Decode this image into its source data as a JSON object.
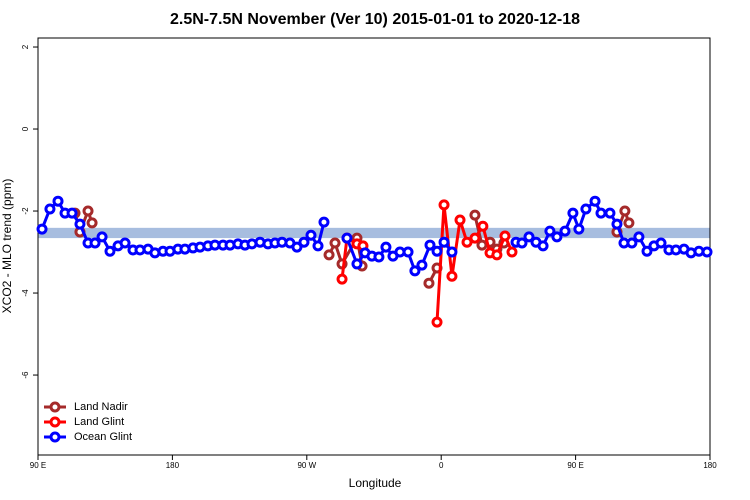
{
  "chart_data": {
    "type": "line",
    "title": "2.5N-7.5N November (Ver 10)   2015-01-01 to 2020-12-18",
    "xlabel": "Longitude",
    "ylabel": "XCO2 - MLO trend (ppm)",
    "xlim": [
      90,
      540
    ],
    "ylim": [
      -7.95,
      2.22
    ],
    "xticks": [
      {
        "value": 90,
        "label": "90 E"
      },
      {
        "value": 180,
        "label": "180"
      },
      {
        "value": 270,
        "label": "90 W"
      },
      {
        "value": 360,
        "label": "0"
      },
      {
        "value": 450,
        "label": "90 E"
      },
      {
        "value": 540,
        "label": "180"
      }
    ],
    "yticks": [
      2,
      0,
      -2,
      -4,
      -6
    ],
    "reference_band": {
      "ylim": [
        -2.66,
        -2.41
      ],
      "color": "#a7bddf"
    },
    "legend": "bottom-left",
    "series": [
      {
        "name": "Land Nadir",
        "color": "#a52a2a",
        "x": [
          114.8,
          118.1,
          123.5,
          126.2,
          null,
          284.9,
          288.9,
          293.6,
          303.6,
          307.0,
          null,
          351.8,
          357.2,
          null,
          382.6,
          387.3,
          392.7,
          397.3,
          402.0,
          null,
          477.7,
          483.0,
          485.7
        ],
        "values": [
          -2.05,
          -2.51,
          -2.0,
          -2.29,
          null,
          -3.07,
          -2.78,
          -3.29,
          -2.66,
          -3.34,
          null,
          -3.76,
          -3.39,
          null,
          -2.1,
          -2.83,
          -2.76,
          -2.93,
          -2.78,
          null,
          -2.51,
          -2.0,
          -2.29
        ]
      },
      {
        "name": "Land Glint",
        "color": "#ff0000",
        "x": [
          293.6,
          296.9,
          303.6,
          307.6,
          null,
          357.2,
          361.9,
          367.2,
          372.6,
          377.3,
          382.6,
          387.9,
          392.7,
          397.3,
          402.7,
          407.4
        ],
        "values": [
          -3.66,
          -2.66,
          -2.8,
          -2.85,
          null,
          -4.71,
          -1.85,
          -3.59,
          -2.22,
          -2.76,
          -2.66,
          -2.37,
          -3.02,
          -3.07,
          -2.61,
          -3.0
        ]
      },
      {
        "name": "Ocean Glint",
        "color": "#0000ff",
        "x": [
          92.7,
          98.0,
          103.4,
          108.1,
          112.8,
          118.1,
          123.5,
          128.2,
          132.9,
          138.2,
          143.6,
          148.3,
          153.6,
          158.3,
          163.7,
          168.3,
          173.7,
          178.4,
          183.7,
          188.4,
          193.8,
          198.5,
          203.8,
          208.5,
          213.9,
          218.6,
          223.9,
          228.6,
          233.3,
          238.7,
          244.0,
          248.7,
          253.4,
          258.7,
          263.4,
          268.1,
          272.8,
          277.5,
          281.5,
          null,
          296.9,
          303.6,
          309.0,
          313.6,
          318.3,
          323.0,
          327.7,
          332.4,
          337.8,
          342.4,
          347.1,
          352.5,
          357.2,
          361.9,
          367.2,
          null,
          410.1,
          414.1,
          418.8,
          423.5,
          428.2,
          432.8,
          437.5,
          442.9,
          448.2,
          452.2,
          456.9,
          463.0,
          467.0,
          473.0,
          477.7,
          482.4,
          487.7,
          492.4,
          497.8,
          502.5,
          507.2,
          512.5,
          517.2,
          522.6,
          527.3,
          532.6,
          538.0
        ],
        "values": [
          -2.44,
          -1.95,
          -1.76,
          -2.05,
          -2.05,
          -2.32,
          -2.78,
          -2.78,
          -2.63,
          -2.98,
          -2.85,
          -2.78,
          -2.95,
          -2.95,
          -2.93,
          -3.02,
          -2.98,
          -2.98,
          -2.93,
          -2.93,
          -2.9,
          -2.88,
          -2.85,
          -2.83,
          -2.83,
          -2.83,
          -2.8,
          -2.83,
          -2.8,
          -2.76,
          -2.8,
          -2.78,
          -2.76,
          -2.78,
          -2.88,
          -2.76,
          -2.59,
          -2.85,
          -2.27,
          null,
          -2.66,
          -3.29,
          -3.02,
          -3.1,
          -3.12,
          -2.88,
          -3.1,
          -3.0,
          -3.0,
          -3.46,
          -3.32,
          -2.83,
          -2.98,
          -2.76,
          -3.0,
          null,
          -2.76,
          -2.78,
          -2.63,
          -2.76,
          -2.85,
          -2.49,
          -2.63,
          -2.49,
          -2.05,
          -2.44,
          -1.95,
          -1.76,
          -2.05,
          -2.05,
          -2.32,
          -2.78,
          -2.78,
          -2.63,
          -2.98,
          -2.85,
          -2.78,
          -2.95,
          -2.95,
          -2.93,
          -3.02,
          -2.98,
          -3.0
        ]
      }
    ]
  }
}
